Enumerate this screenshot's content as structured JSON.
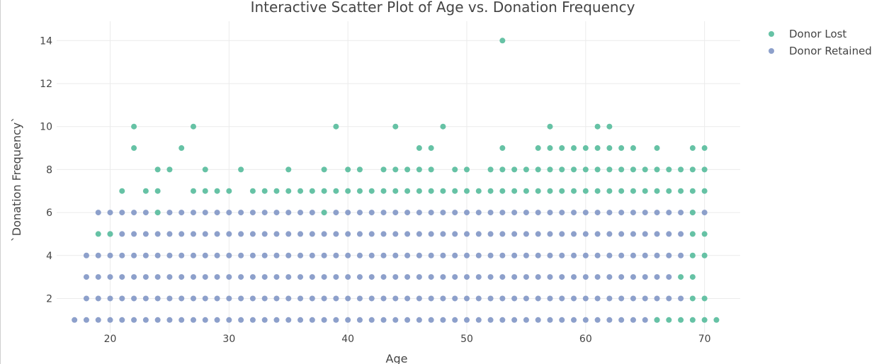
{
  "chart_data": {
    "type": "scatter",
    "title": "Interactive Scatter Plot of Age vs. Donation Frequency",
    "xlabel": "Age",
    "ylabel": "`Donation Frequency`",
    "xlim": [
      15.5,
      73
    ],
    "ylim": [
      0.4,
      14.9
    ],
    "xticks": [
      20,
      30,
      40,
      50,
      60,
      70
    ],
    "yticks": [
      2,
      4,
      6,
      8,
      10,
      12,
      14
    ],
    "grid": true,
    "legend_position": "top-right",
    "series": [
      {
        "name": "Donor Lost",
        "color": "#66c2a5",
        "points": [
          [
            19,
            5
          ],
          [
            20,
            5
          ],
          [
            21,
            7
          ],
          [
            22,
            10
          ],
          [
            22,
            9
          ],
          [
            23,
            7
          ],
          [
            24,
            8
          ],
          [
            24,
            7
          ],
          [
            24,
            6
          ],
          [
            25,
            8
          ],
          [
            26,
            9
          ],
          [
            27,
            10
          ],
          [
            27,
            7
          ],
          [
            28,
            8
          ],
          [
            28,
            7
          ],
          [
            29,
            7
          ],
          [
            30,
            7
          ],
          [
            31,
            8
          ],
          [
            32,
            7
          ],
          [
            33,
            7
          ],
          [
            34,
            7
          ],
          [
            35,
            8
          ],
          [
            35,
            7
          ],
          [
            36,
            7
          ],
          [
            37,
            7
          ],
          [
            38,
            8
          ],
          [
            38,
            7
          ],
          [
            38,
            6
          ],
          [
            39,
            10
          ],
          [
            39,
            7
          ],
          [
            40,
            8
          ],
          [
            40,
            7
          ],
          [
            41,
            8
          ],
          [
            41,
            7
          ],
          [
            42,
            7
          ],
          [
            43,
            8
          ],
          [
            43,
            7
          ],
          [
            44,
            10
          ],
          [
            44,
            8
          ],
          [
            44,
            7
          ],
          [
            45,
            8
          ],
          [
            45,
            7
          ],
          [
            46,
            9
          ],
          [
            46,
            8
          ],
          [
            46,
            7
          ],
          [
            47,
            9
          ],
          [
            47,
            8
          ],
          [
            47,
            7
          ],
          [
            48,
            10
          ],
          [
            48,
            7
          ],
          [
            49,
            8
          ],
          [
            49,
            7
          ],
          [
            50,
            8
          ],
          [
            50,
            7
          ],
          [
            51,
            7
          ],
          [
            52,
            8
          ],
          [
            52,
            7
          ],
          [
            53,
            14
          ],
          [
            53,
            9
          ],
          [
            53,
            8
          ],
          [
            53,
            7
          ],
          [
            54,
            8
          ],
          [
            54,
            7
          ],
          [
            55,
            8
          ],
          [
            55,
            7
          ],
          [
            56,
            9
          ],
          [
            56,
            8
          ],
          [
            56,
            7
          ],
          [
            57,
            10
          ],
          [
            57,
            9
          ],
          [
            57,
            8
          ],
          [
            57,
            7
          ],
          [
            58,
            9
          ],
          [
            58,
            8
          ],
          [
            58,
            7
          ],
          [
            59,
            9
          ],
          [
            59,
            8
          ],
          [
            59,
            7
          ],
          [
            60,
            9
          ],
          [
            60,
            8
          ],
          [
            60,
            7
          ],
          [
            61,
            10
          ],
          [
            61,
            9
          ],
          [
            61,
            8
          ],
          [
            61,
            7
          ],
          [
            62,
            10
          ],
          [
            62,
            9
          ],
          [
            62,
            8
          ],
          [
            62,
            7
          ],
          [
            63,
            9
          ],
          [
            63,
            8
          ],
          [
            63,
            7
          ],
          [
            64,
            9
          ],
          [
            64,
            8
          ],
          [
            64,
            7
          ],
          [
            65,
            8
          ],
          [
            65,
            7
          ],
          [
            66,
            9
          ],
          [
            66,
            8
          ],
          [
            66,
            7
          ],
          [
            66,
            1
          ],
          [
            67,
            8
          ],
          [
            67,
            7
          ],
          [
            67,
            1
          ],
          [
            68,
            8
          ],
          [
            68,
            7
          ],
          [
            68,
            3
          ],
          [
            68,
            1
          ],
          [
            69,
            9
          ],
          [
            69,
            8
          ],
          [
            69,
            7
          ],
          [
            69,
            6
          ],
          [
            69,
            5
          ],
          [
            69,
            4
          ],
          [
            69,
            3
          ],
          [
            69,
            2
          ],
          [
            69,
            1
          ],
          [
            70,
            9
          ],
          [
            70,
            8
          ],
          [
            70,
            7
          ],
          [
            70,
            5
          ],
          [
            70,
            4
          ],
          [
            70,
            2
          ],
          [
            70,
            1
          ],
          [
            71,
            1
          ]
        ]
      },
      {
        "name": "Donor Retained",
        "color": "#8da0cb",
        "ages_full": [
          18,
          19,
          20,
          21,
          22,
          23,
          24,
          25,
          26,
          27,
          28,
          29,
          30,
          31,
          32,
          33,
          34,
          35,
          36,
          37,
          38,
          39,
          40,
          41,
          42,
          43,
          44,
          45,
          46,
          47,
          48,
          49,
          50,
          51,
          52,
          53,
          54,
          55,
          56,
          57,
          58,
          59,
          60,
          61,
          62,
          63,
          64,
          65,
          66,
          67,
          68,
          69,
          70
        ],
        "levels_full": [
          1,
          2,
          3,
          4,
          5,
          6
        ],
        "points": [
          [
            17,
            1
          ],
          [
            68,
            2
          ],
          [
            68,
            4
          ],
          [
            68,
            5
          ],
          [
            68,
            6
          ],
          [
            67,
            6
          ],
          [
            69,
            6
          ],
          [
            70,
            6
          ],
          [
            67,
            5
          ],
          [
            67,
            4
          ],
          [
            67,
            3
          ],
          [
            67,
            2
          ]
        ]
      }
    ]
  }
}
